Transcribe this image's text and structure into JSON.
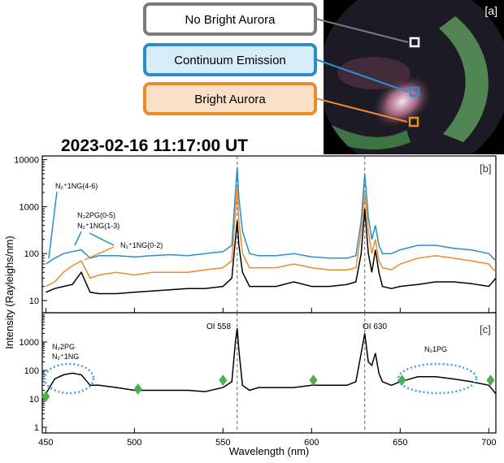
{
  "title": "2023-02-16 11:17:00 UT",
  "image_label": "[a]",
  "y_label": "Intensity (Rayleighs/nm)",
  "x_label": "Wavelength (nm)",
  "chart_data": [
    {
      "type": "line",
      "ylog": true,
      "xlim": [
        448,
        704
      ],
      "ylim": [
        5.5,
        12000
      ],
      "yticks": [
        10,
        100,
        1000,
        10000
      ],
      "vlines": [
        558,
        630
      ],
      "annotations": [
        "N₂⁺1NG(4-6)",
        "N₂2PG(0-5)",
        "N₂⁺1NG(1-3)",
        "N₂⁺1NG(0-2)",
        "[b]"
      ],
      "x": [
        450,
        455,
        460,
        465,
        470,
        475,
        480,
        490,
        500,
        510,
        520,
        530,
        540,
        550,
        555,
        557,
        558,
        559,
        561,
        565,
        570,
        580,
        590,
        600,
        610,
        620,
        625,
        628,
        630,
        632,
        634,
        636,
        638,
        640,
        645,
        650,
        660,
        670,
        680,
        690,
        700,
        704
      ],
      "series": [
        {
          "name": "No Bright Aurora",
          "color": "#000000",
          "legend_color": "#7a7a7a",
          "values": [
            15,
            18,
            20,
            22,
            40,
            15,
            14,
            14,
            15,
            16,
            17,
            18,
            18,
            20,
            30,
            200,
            500,
            150,
            40,
            20,
            20,
            20,
            25,
            20,
            20,
            22,
            25,
            100,
            900,
            100,
            40,
            120,
            40,
            20,
            18,
            20,
            22,
            25,
            25,
            23,
            20,
            30
          ]
        },
        {
          "name": "Continuum Emission",
          "color": "#2a8fc9",
          "legend_color": "#2a8fc9",
          "values": [
            60,
            80,
            100,
            110,
            120,
            80,
            90,
            90,
            85,
            90,
            95,
            90,
            100,
            110,
            150,
            2000,
            7000,
            1500,
            300,
            100,
            90,
            90,
            100,
            85,
            80,
            80,
            90,
            500,
            5000,
            600,
            200,
            400,
            150,
            100,
            100,
            120,
            150,
            150,
            130,
            120,
            100,
            70
          ]
        },
        {
          "name": "Bright Aurora",
          "color": "#ef8a2a",
          "legend_color": "#ef8a2a",
          "values": [
            20,
            25,
            40,
            55,
            70,
            30,
            35,
            40,
            35,
            40,
            40,
            40,
            45,
            50,
            70,
            800,
            2500,
            500,
            100,
            50,
            50,
            50,
            60,
            50,
            45,
            45,
            50,
            300,
            2000,
            300,
            100,
            200,
            70,
            50,
            45,
            60,
            80,
            90,
            80,
            70,
            60,
            40
          ]
        }
      ]
    },
    {
      "type": "line",
      "ylog": true,
      "xlim": [
        448,
        704
      ],
      "ylim": [
        0.63,
        10700
      ],
      "yticks": [
        1,
        10,
        100,
        1000
      ],
      "xticks": [
        450,
        500,
        550,
        600,
        650,
        700
      ],
      "vlines": [
        558,
        630
      ],
      "annotations": [
        "OI 558",
        "OI 630",
        "[c]",
        "N₂2PG",
        "N₂⁺1NG",
        "N₂1PG"
      ],
      "x": [
        450,
        455,
        460,
        465,
        470,
        475,
        480,
        490,
        500,
        510,
        520,
        530,
        540,
        550,
        555,
        557,
        558,
        559,
        561,
        565,
        570,
        580,
        590,
        600,
        610,
        620,
        625,
        628,
        630,
        632,
        634,
        636,
        638,
        640,
        645,
        650,
        660,
        670,
        680,
        690,
        700,
        704
      ],
      "series": [
        {
          "color": "#000000",
          "values": [
            15,
            50,
            70,
            80,
            70,
            30,
            30,
            25,
            20,
            20,
            20,
            20,
            18,
            25,
            40,
            1000,
            3000,
            500,
            30,
            20,
            25,
            25,
            25,
            30,
            30,
            30,
            40,
            400,
            2000,
            200,
            150,
            400,
            80,
            40,
            30,
            40,
            60,
            60,
            50,
            40,
            30,
            15
          ]
        }
      ],
      "markers": {
        "color": "#4caf50",
        "x": [
          450,
          502,
          550,
          601,
          651,
          701
        ],
        "values": [
          12,
          22,
          45,
          45,
          45,
          45
        ]
      }
    }
  ]
}
